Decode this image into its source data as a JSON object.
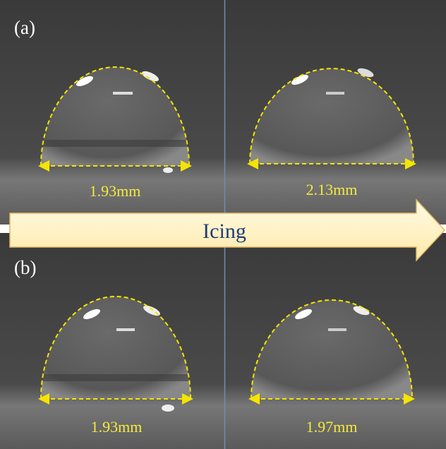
{
  "panels": [
    {
      "label": "(a)",
      "images": [
        {
          "width_label": "1.93mm"
        },
        {
          "width_label": "2.13mm"
        }
      ]
    },
    {
      "label": "(b)",
      "images": [
        {
          "width_label": "1.93mm"
        },
        {
          "width_label": "1.97mm"
        }
      ]
    }
  ],
  "arrow": {
    "label": "Icing"
  }
}
